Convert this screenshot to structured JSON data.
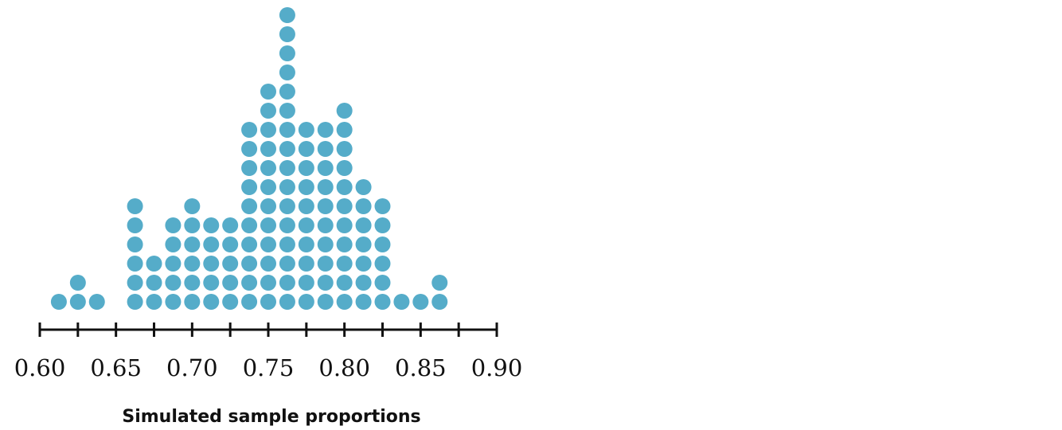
{
  "chart_data": {
    "type": "dot",
    "title": "",
    "xlabel": "Simulated sample proportions",
    "ylabel": "",
    "xlim": [
      0.6,
      0.9
    ],
    "ticks": [
      "0.60",
      "0.65",
      "0.70",
      "0.75",
      "0.80",
      "0.85",
      "0.90"
    ],
    "tick_values": [
      0.6,
      0.625,
      0.65,
      0.675,
      0.7,
      0.725,
      0.75,
      0.775,
      0.8,
      0.825,
      0.85,
      0.875,
      0.9
    ],
    "dot_color": "#55acc9",
    "axis_color": "#111111",
    "points": [
      {
        "x": 0.6125,
        "count": 1
      },
      {
        "x": 0.625,
        "count": 2
      },
      {
        "x": 0.6375,
        "count": 1
      },
      {
        "x": 0.6625,
        "count": 6
      },
      {
        "x": 0.675,
        "count": 3
      },
      {
        "x": 0.6875,
        "count": 5
      },
      {
        "x": 0.7,
        "count": 6
      },
      {
        "x": 0.7125,
        "count": 5
      },
      {
        "x": 0.725,
        "count": 5
      },
      {
        "x": 0.7375,
        "count": 10
      },
      {
        "x": 0.75,
        "count": 12
      },
      {
        "x": 0.7625,
        "count": 16
      },
      {
        "x": 0.775,
        "count": 10
      },
      {
        "x": 0.7875,
        "count": 10
      },
      {
        "x": 0.8,
        "count": 11
      },
      {
        "x": 0.8125,
        "count": 7
      },
      {
        "x": 0.825,
        "count": 6
      },
      {
        "x": 0.8375,
        "count": 1
      },
      {
        "x": 0.85,
        "count": 1
      },
      {
        "x": 0.8625,
        "count": 2
      }
    ]
  }
}
